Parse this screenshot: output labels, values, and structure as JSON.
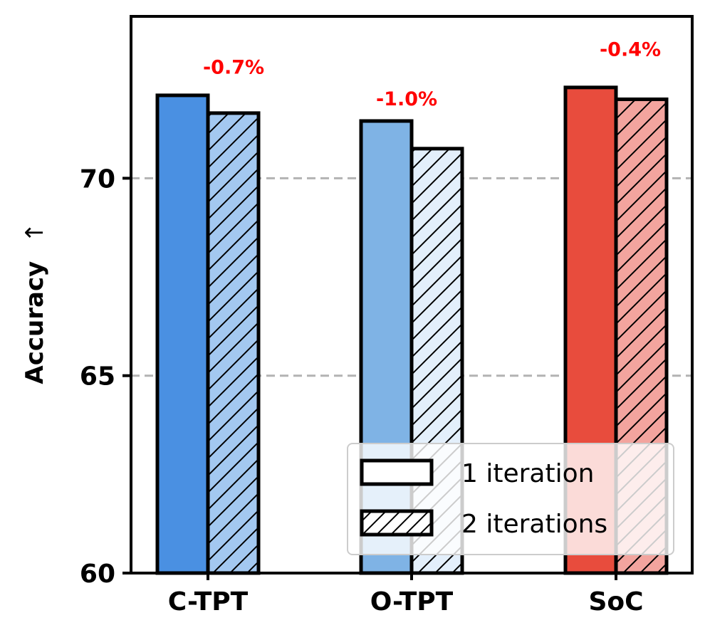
{
  "chart_data": {
    "type": "bar",
    "categories": [
      "C-TPT",
      "O-TPT",
      "SoC"
    ],
    "series": [
      {
        "name": "1 iteration",
        "values": [
          72.1,
          71.45,
          72.3
        ],
        "colors": [
          "#4a90e2",
          "#7fb3e5",
          "#e84c3d"
        ],
        "hatch": false
      },
      {
        "name": "2 iterations",
        "values": [
          71.65,
          70.75,
          72.0
        ],
        "colors": [
          "#a3c8f0",
          "#e3effb",
          "#f3a49e"
        ],
        "hatch": true
      }
    ],
    "annotations": [
      {
        "category": "C-TPT",
        "text": "-0.7%",
        "y": 72.65
      },
      {
        "category": "O-TPT",
        "text": "-1.0%",
        "y": 71.85
      },
      {
        "category": "SoC",
        "text": "-0.4%",
        "y": 73.1
      }
    ],
    "annotation_color": "#ff0000",
    "ylabel": "Accuracy",
    "ylabel_arrow": "↑",
    "xlabel": "",
    "title": "",
    "ylim": [
      60,
      74.1
    ],
    "yticks": [
      60,
      65,
      70
    ],
    "grid": "horizontal dashed at 65 and 70",
    "legend_location": "lower right"
  }
}
